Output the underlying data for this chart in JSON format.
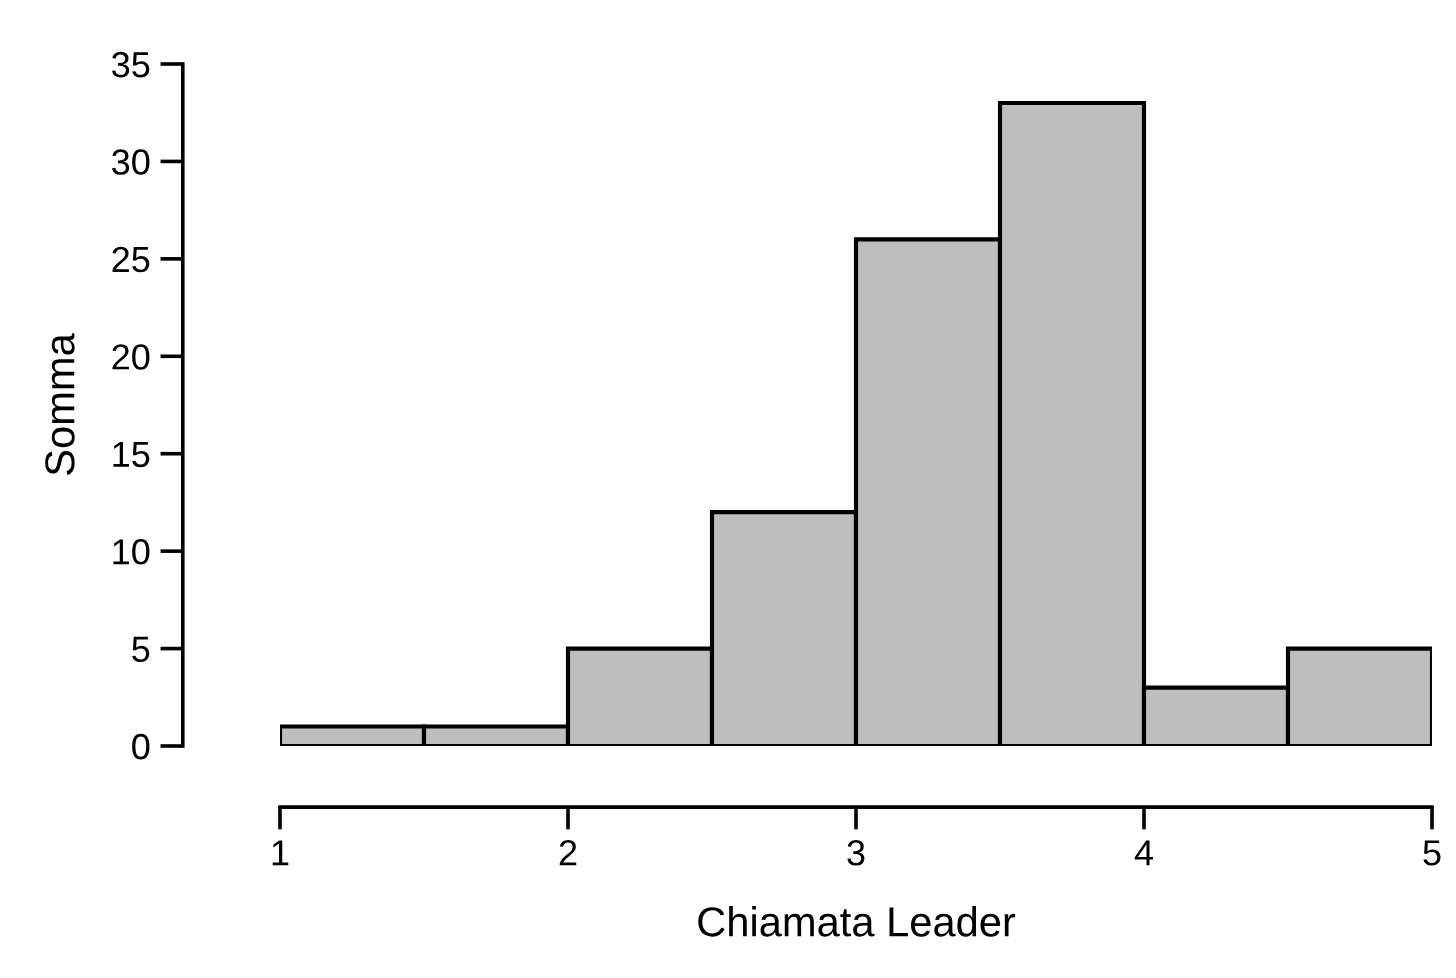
{
  "chart_data": {
    "type": "histogram",
    "xlabel": "Chiamata Leader",
    "ylabel": "Somma",
    "bins": [
      1,
      1.5,
      2,
      2.5,
      3,
      3.5,
      4,
      4.5,
      5
    ],
    "values": [
      1,
      1,
      5,
      12,
      26,
      33,
      3,
      5
    ],
    "color": "#bebebe",
    "xlim": [
      1,
      5
    ],
    "xticks": [
      1,
      2,
      3,
      4,
      5
    ],
    "ylim": [
      0,
      35
    ],
    "yticks": [
      0,
      5,
      10,
      15,
      20,
      25,
      30,
      35
    ],
    "grid": false,
    "legend": false
  }
}
